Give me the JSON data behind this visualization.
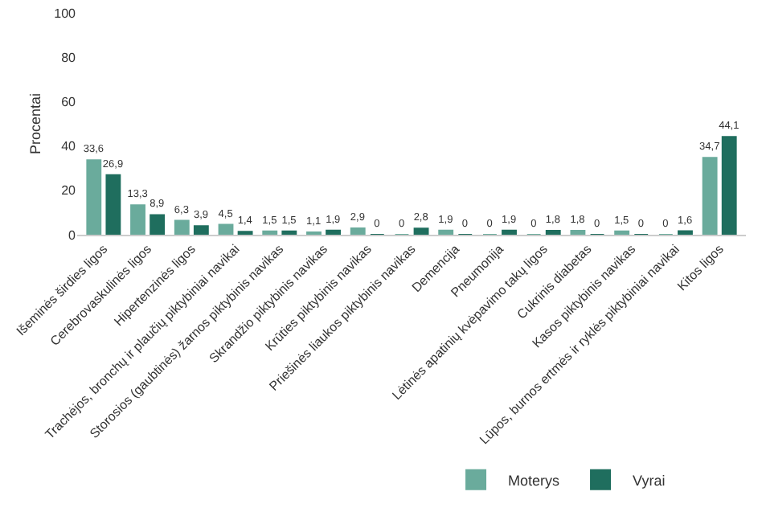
{
  "chart_data": {
    "type": "bar",
    "ylabel": "Procentai",
    "categories": [
      "Išeminės širdies ligos",
      "Cerebrovaskulinės ligos",
      "Hipertenzinės ligos",
      "Trachėjos, bronchų ir plaučių piktybiniai navikai",
      "Storosios (gaubtinės) žarnos piktybinis navikas",
      "Skrandžio piktybinis navikas",
      "Krūties piktybinis navikas",
      "Priešinės liaukos piktybinis navikas",
      "Demencija",
      "Pneumonija",
      "Lėtinės apatinių kvėpavimo takų ligos",
      "Cukrinis diabetas",
      "Kasos piktybinis navikas",
      "Lūpos, burnos ertmės ir ryklės piktybiniai navikai",
      "Kitos ligos"
    ],
    "series": [
      {
        "name": "Moterys",
        "color": "#6aab9c",
        "values": [
          33.6,
          13.3,
          6.3,
          4.5,
          1.5,
          1.1,
          2.9,
          0,
          1.9,
          0,
          0,
          1.8,
          1.5,
          0,
          34.7
        ],
        "value_labels": [
          "33,6",
          "13,3",
          "6,3",
          "4,5",
          "1,5",
          "1,1",
          "2,9",
          "0",
          "1,9",
          "0",
          "0",
          "1,8",
          "1,5",
          "0",
          "34,7"
        ]
      },
      {
        "name": "Vyrai",
        "color": "#1f6e5e",
        "values": [
          26.9,
          8.9,
          3.9,
          1.4,
          1.5,
          1.9,
          0,
          2.8,
          0,
          1.9,
          1.8,
          0,
          0,
          1.6,
          44.1
        ],
        "value_labels": [
          "26,9",
          "8,9",
          "3,9",
          "1,4",
          "1,5",
          "1,9",
          "0",
          "2,8",
          "0",
          "1,9",
          "1,8",
          "0",
          "0",
          "1,6",
          "44,1"
        ]
      }
    ],
    "ylim": [
      0,
      100
    ],
    "yticks": [
      0,
      20,
      40,
      60,
      80,
      100
    ],
    "grid": false,
    "legend": "bottom"
  }
}
